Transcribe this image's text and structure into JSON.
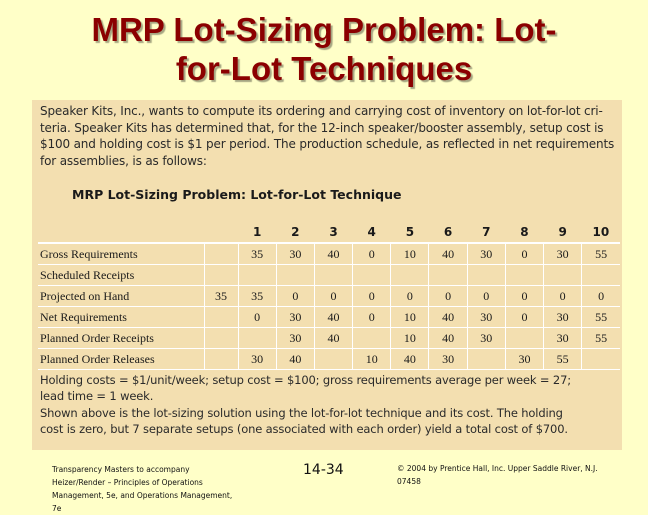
{
  "slide": {
    "title_lines": [
      "MRP Lot-Sizing Problem: Lot-",
      "for-Lot Techniques"
    ]
  },
  "intro": {
    "lines": [
      "Speaker Kits, Inc., wants to compute its ordering and carrying cost of inventory on lot-for-lot cri-",
      "teria. Speaker Kits has determined that, for the 12-inch speaker/booster assembly, setup cost is",
      "$100 and holding cost is $1 per period. The production schedule, as reflected in net requirements",
      "for assemblies, is as follows:"
    ]
  },
  "table": {
    "title": "MRP Lot-Sizing Problem: Lot-for-Lot Technique",
    "periods": [
      "1",
      "2",
      "3",
      "4",
      "5",
      "6",
      "7",
      "8",
      "9",
      "10"
    ],
    "rows": [
      {
        "label": "Gross Requirements",
        "initial": "",
        "values": [
          "35",
          "30",
          "40",
          "0",
          "10",
          "40",
          "30",
          "0",
          "30",
          "55"
        ]
      },
      {
        "label": "Scheduled Receipts",
        "initial": "",
        "values": [
          "",
          "",
          "",
          "",
          "",
          "",
          "",
          "",
          "",
          ""
        ]
      },
      {
        "label": "Projected on Hand",
        "initial": "35",
        "values": [
          "35",
          "0",
          "0",
          "0",
          "0",
          "0",
          "0",
          "0",
          "0",
          "0"
        ]
      },
      {
        "label": "Net Requirements",
        "initial": "",
        "values": [
          "0",
          "30",
          "40",
          "0",
          "10",
          "40",
          "30",
          "0",
          "30",
          "55"
        ]
      },
      {
        "label": "Planned Order Receipts",
        "initial": "",
        "values": [
          "",
          "30",
          "40",
          "",
          "10",
          "40",
          "30",
          "",
          "30",
          "55"
        ]
      },
      {
        "label": "Planned Order Releases",
        "initial": "",
        "values": [
          "30",
          "40",
          "",
          "10",
          "40",
          "30",
          "",
          "30",
          "55",
          ""
        ]
      }
    ]
  },
  "footnote": {
    "lines": [
      "Holding costs = $1/unit/week; setup cost = $100; gross requirements average per week = 27;",
      "lead time = 1 week."
    ]
  },
  "summary": {
    "lines": [
      "Shown above is the lot-sizing solution using the lot-for-lot technique and its cost. The holding",
      "cost is zero, but 7 separate setups (one associated with each order) yield a total cost of $700."
    ]
  },
  "footer": {
    "left_lines": [
      "Transparency Masters to accompany",
      "Heizer/Render – Principles of Operations",
      "Management, 5e, and Operations Management,",
      "7e"
    ],
    "page_number": "14-34",
    "right_lines": [
      "© 2004 by Prentice Hall, Inc.  Upper Saddle River, N.J.",
      "07458"
    ]
  },
  "colors": {
    "background": "#ffffc8",
    "title": "#8b0000",
    "panel": "#f3dfb0",
    "grid_lines": "#ffffff"
  }
}
